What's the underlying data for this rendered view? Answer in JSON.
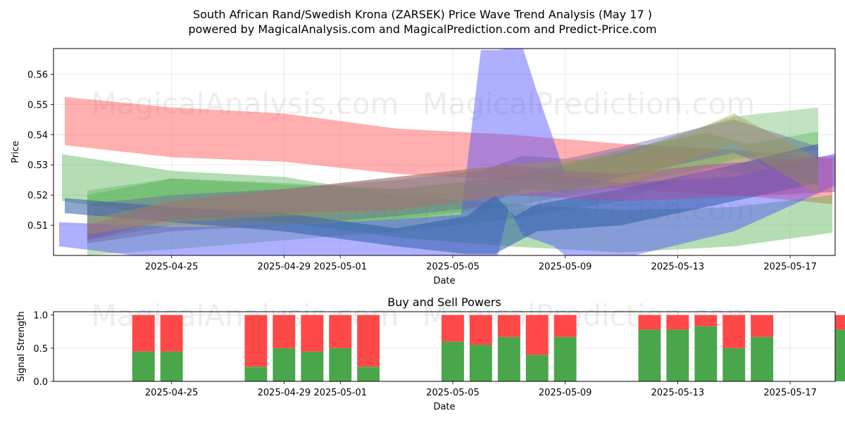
{
  "title_line1": "South African Rand/Swedish Krona (ZARSEK) Price Wave Trend Analysis (May 17 )",
  "title_line2": "powered by MagicalAnalysis.com and MagicalPrediction.com and Predict-Price.com",
  "watermark_left": "MagicalAnalysis.com",
  "watermark_right": "MagicalPrediction.com",
  "chart_data": [
    {
      "type": "area",
      "title": "",
      "xlabel": "Date",
      "ylabel": "Price",
      "ylim": [
        0.5,
        0.5685
      ],
      "xlim": [
        -1.2,
        26.6
      ],
      "grid": true,
      "date_origin": "2025-04-22",
      "x_ticks": [
        {
          "label": "2025-04-25",
          "x": 3
        },
        {
          "label": "2025-04-29",
          "x": 7
        },
        {
          "label": "2025-05-01",
          "x": 9
        },
        {
          "label": "2025-05-05",
          "x": 13
        },
        {
          "label": "2025-05-09",
          "x": 17
        },
        {
          "label": "2025-05-13",
          "x": 21
        },
        {
          "label": "2025-05-17",
          "x": 25
        }
      ],
      "y_ticks": [
        0.51,
        0.52,
        0.53,
        0.54,
        0.55,
        0.56
      ],
      "bands": [
        {
          "color": "#ff4d4d",
          "opacity": 0.45,
          "x": [
            -0.8,
            3,
            7,
            11,
            15,
            19,
            23,
            26.5
          ],
          "upper": [
            0.5525,
            0.549,
            0.547,
            0.542,
            0.54,
            0.537,
            0.535,
            0.532
          ],
          "lower": [
            0.5365,
            0.5325,
            0.531,
            0.527,
            0.525,
            0.522,
            0.52,
            0.517
          ]
        },
        {
          "color": "#4dae4d",
          "opacity": 0.42,
          "x": [
            -0.9,
            3,
            7,
            11,
            15,
            19,
            23,
            26.5
          ],
          "upper": [
            0.5335,
            0.528,
            0.526,
            0.52,
            0.517,
            0.515,
            0.516,
            0.52
          ],
          "lower": [
            0.518,
            0.513,
            0.511,
            0.506,
            0.503,
            0.501,
            0.503,
            0.5075
          ]
        },
        {
          "color": "#4dae4d",
          "opacity": 0.35,
          "x": [
            0,
            3,
            7,
            11,
            15,
            19,
            23,
            26
          ],
          "upper": [
            0.52,
            0.5255,
            0.524,
            0.522,
            0.526,
            0.534,
            0.546,
            0.549
          ],
          "lower": [
            0.5,
            0.502,
            0.505,
            0.508,
            0.512,
            0.518,
            0.532,
            0.535
          ]
        },
        {
          "color": "#4dae4d",
          "opacity": 0.35,
          "x": [
            0,
            3,
            7,
            11,
            15,
            19,
            22,
            23.5,
            26
          ],
          "upper": [
            0.5215,
            0.5255,
            0.5235,
            0.522,
            0.526,
            0.535,
            0.5405,
            0.537,
            0.541
          ],
          "lower": [
            0.505,
            0.51,
            0.51,
            0.512,
            0.516,
            0.523,
            0.529,
            0.527,
            0.531
          ]
        },
        {
          "color": "#4d4dff",
          "opacity": 0.45,
          "x": [
            -1,
            3,
            7,
            11,
            13.3,
            14,
            14.6,
            15,
            15.5,
            16,
            16.6,
            17,
            19,
            23,
            26.7
          ],
          "upper": [
            0.511,
            0.5095,
            0.51,
            0.512,
            0.5135,
            0.568,
            0.568,
            0.5685,
            0.5685,
            0.554,
            0.538,
            0.5265,
            0.524,
            0.526,
            0.534
          ],
          "lower": [
            0.503,
            0.4985,
            0.4975,
            0.4975,
            0.4975,
            0.4975,
            0.5,
            0.5155,
            0.5065,
            0.505,
            0.503,
            0.5,
            0.499,
            0.508,
            0.5235
          ]
        },
        {
          "color": "#2e5fa8",
          "opacity": 0.55,
          "x": [
            -0.8,
            3,
            7,
            11,
            13.5,
            14.5,
            15.2,
            16,
            19,
            23,
            26
          ],
          "upper": [
            0.519,
            0.516,
            0.514,
            0.509,
            0.513,
            0.52,
            0.513,
            0.517,
            0.522,
            0.53,
            0.537
          ],
          "lower": [
            0.514,
            0.511,
            0.508,
            0.503,
            0.5005,
            0.5005,
            0.504,
            0.508,
            0.51,
            0.518,
            0.524
          ]
        },
        {
          "color": "#a64da6",
          "opacity": 0.5,
          "x": [
            0,
            3,
            7,
            11,
            15,
            17,
            19,
            22,
            26.6
          ],
          "upper": [
            0.51,
            0.518,
            0.522,
            0.526,
            0.53,
            0.528,
            0.527,
            0.53,
            0.533
          ],
          "lower": [
            0.505,
            0.512,
            0.514,
            0.515,
            0.52,
            0.519,
            0.518,
            0.519,
            0.521
          ]
        },
        {
          "color": "#6a5aa6",
          "opacity": 0.4,
          "x": [
            0,
            3,
            7,
            11,
            14,
            15.5,
            17,
            19,
            23,
            26
          ],
          "upper": [
            0.517,
            0.52,
            0.522,
            0.525,
            0.528,
            0.533,
            0.532,
            0.536,
            0.545,
            0.536
          ],
          "lower": [
            0.504,
            0.508,
            0.51,
            0.513,
            0.516,
            0.522,
            0.521,
            0.526,
            0.534,
            0.523
          ]
        },
        {
          "color": "#a6954d",
          "opacity": 0.4,
          "x": [
            0,
            3,
            7,
            11,
            15,
            19,
            21.5,
            23,
            26
          ],
          "upper": [
            0.512,
            0.518,
            0.522,
            0.526,
            0.53,
            0.533,
            0.541,
            0.547,
            0.532
          ],
          "lower": [
            0.507,
            0.511,
            0.513,
            0.515,
            0.52,
            0.523,
            0.532,
            0.537,
            0.52
          ]
        }
      ]
    },
    {
      "type": "bar",
      "title": "Buy and Sell Powers",
      "xlabel": "Date",
      "ylabel": "Signal Strength",
      "ylim": [
        0,
        1.05
      ],
      "grid": true,
      "x_ticks": [
        {
          "label": "2025-04-25",
          "x": 3
        },
        {
          "label": "2025-04-29",
          "x": 7
        },
        {
          "label": "2025-05-01",
          "x": 9
        },
        {
          "label": "2025-05-05",
          "x": 13
        },
        {
          "label": "2025-05-09",
          "x": 17
        },
        {
          "label": "2025-05-13",
          "x": 21
        },
        {
          "label": "2025-05-17",
          "x": 25
        }
      ],
      "y_ticks": [
        0.0,
        0.5,
        1.0
      ],
      "series": [
        {
          "name": "Buy",
          "color": "#4aa64a"
        },
        {
          "name": "Sell",
          "color": "#ff4848"
        }
      ],
      "x": [
        2,
        3,
        6,
        7,
        8,
        9,
        10,
        13,
        14,
        15,
        16,
        17,
        20,
        21,
        22,
        23,
        24,
        27
      ],
      "buy": [
        0.45,
        0.45,
        0.22,
        0.5,
        0.45,
        0.5,
        0.22,
        0.6,
        0.55,
        0.67,
        0.4,
        0.67,
        0.78,
        0.78,
        0.83,
        0.5,
        0.67,
        0.78
      ]
    }
  ]
}
